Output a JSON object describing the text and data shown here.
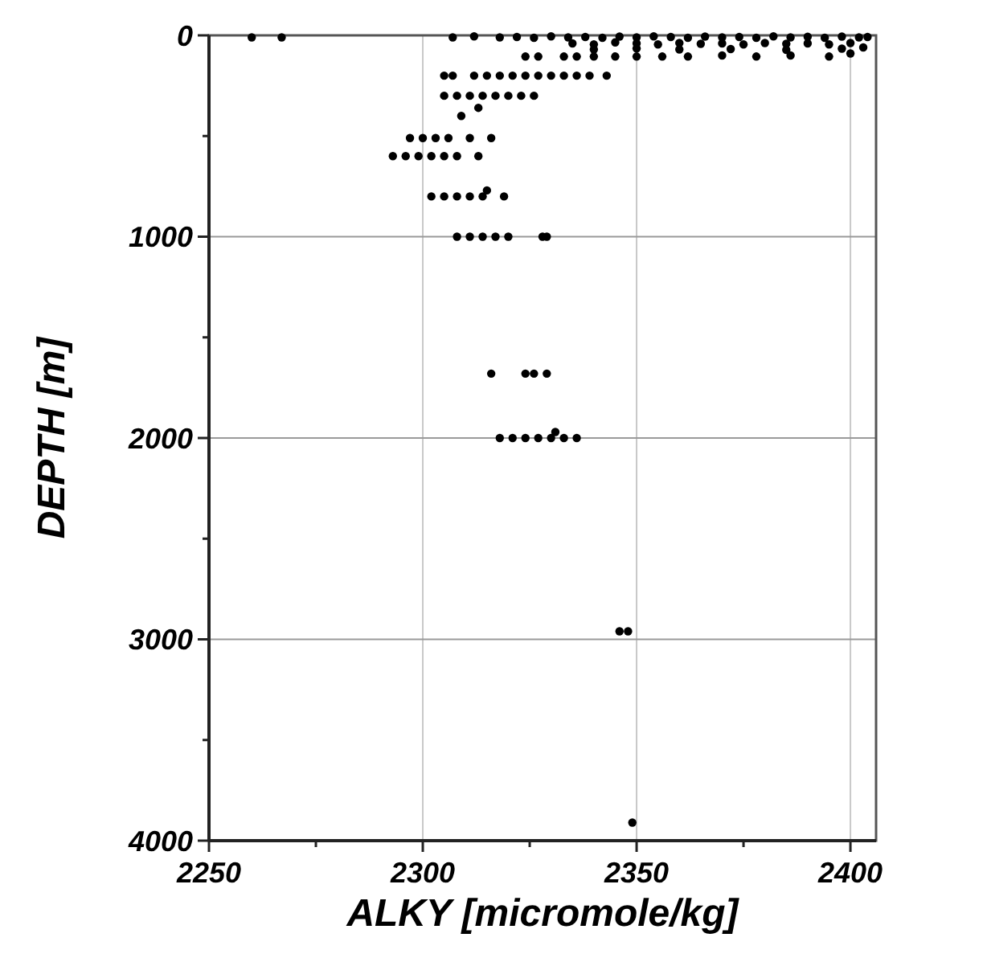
{
  "chart_data": {
    "type": "scatter",
    "xlabel": "ALKY [micromole/kg]",
    "ylabel": "DEPTH [m]",
    "xlim": [
      2250,
      2406
    ],
    "ylim": [
      4000,
      0
    ],
    "xticks": [
      2250,
      {
        "value": 2275,
        "label": null
      },
      2300,
      {
        "value": 2325,
        "label": null
      },
      2350,
      {
        "value": 2375,
        "label": null
      },
      2400
    ],
    "yticks": [
      0,
      {
        "value": 500,
        "label": null
      },
      1000,
      {
        "value": 1500,
        "label": null
      },
      2000,
      {
        "value": 2500,
        "label": null
      },
      3000,
      {
        "value": 3500,
        "label": null
      },
      4000
    ],
    "grid": true,
    "marker": "circle",
    "series": [
      {
        "color": "#000000",
        "x": [
          2260,
          2267,
          2307,
          2312,
          2318,
          2322,
          2326,
          2330,
          2334,
          2338,
          2342,
          2346,
          2350,
          2354,
          2358,
          2362,
          2366,
          2370,
          2374,
          2378,
          2382,
          2386,
          2390,
          2394,
          2398,
          2402,
          2404,
          2335,
          2340,
          2345,
          2350,
          2355,
          2360,
          2365,
          2370,
          2375,
          2380,
          2385,
          2390,
          2395,
          2400,
          2340,
          2350,
          2360,
          2372,
          2385,
          2398,
          2403,
          2324,
          2327,
          2333,
          2336,
          2340,
          2345,
          2350,
          2356,
          2362,
          2370,
          2378,
          2386,
          2395,
          2400,
          2305,
          2307,
          2312,
          2315,
          2318,
          2321,
          2324,
          2327,
          2330,
          2333,
          2336,
          2339,
          2343,
          2305,
          2308,
          2311,
          2314,
          2317,
          2320,
          2323,
          2326,
          2313,
          2309,
          2297,
          2300,
          2303,
          2306,
          2311,
          2316,
          2293,
          2296,
          2299,
          2302,
          2305,
          2308,
          2313,
          2302,
          2305,
          2308,
          2311,
          2314,
          2315,
          2319,
          2308,
          2311,
          2314,
          2317,
          2320,
          2328,
          2329,
          2316,
          2324,
          2326,
          2329,
          2318,
          2321,
          2324,
          2327,
          2330,
          2333,
          2336,
          2331,
          2346,
          2348,
          2349
        ],
        "values": [
          10,
          10,
          10,
          5,
          10,
          8,
          12,
          5,
          10,
          8,
          12,
          6,
          10,
          5,
          8,
          12,
          6,
          10,
          8,
          12,
          5,
          10,
          7,
          12,
          6,
          10,
          8,
          40,
          45,
          35,
          40,
          45,
          38,
          42,
          40,
          45,
          38,
          42,
          40,
          45,
          38,
          70,
          65,
          70,
          68,
          72,
          66,
          60,
          105,
          105,
          105,
          105,
          105,
          105,
          105,
          105,
          105,
          100,
          105,
          100,
          105,
          90,
          200,
          200,
          200,
          200,
          200,
          200,
          200,
          200,
          200,
          200,
          200,
          200,
          200,
          300,
          300,
          300,
          300,
          300,
          300,
          300,
          300,
          360,
          400,
          510,
          510,
          510,
          510,
          510,
          510,
          600,
          600,
          600,
          600,
          600,
          600,
          600,
          800,
          800,
          800,
          800,
          800,
          770,
          800,
          1000,
          1000,
          1000,
          1000,
          1000,
          1000,
          1000,
          1680,
          1680,
          1680,
          1680,
          2000,
          2000,
          2000,
          2000,
          2000,
          2000,
          2000,
          1970,
          2960,
          2960,
          3910
        ]
      }
    ]
  }
}
